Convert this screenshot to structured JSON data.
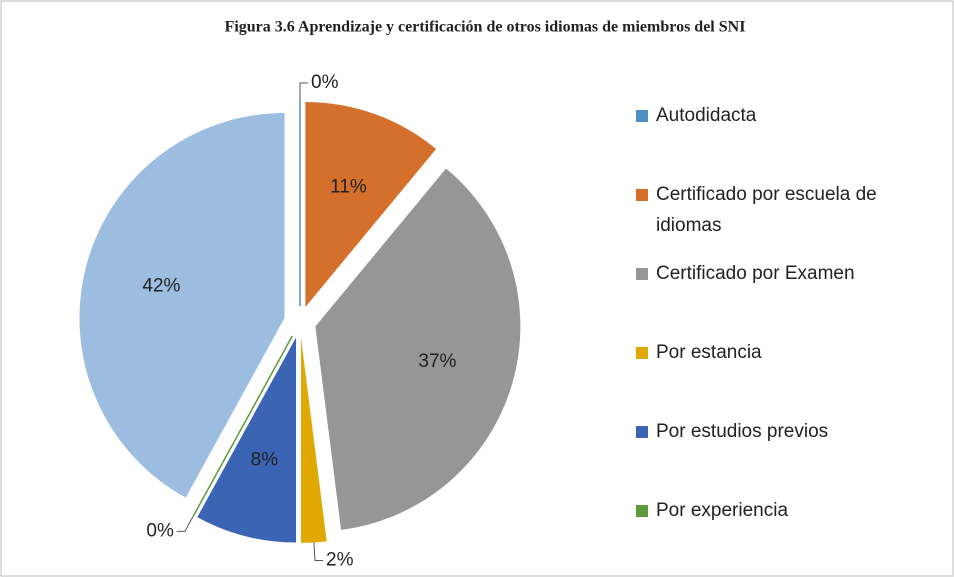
{
  "chart_data": {
    "type": "pie",
    "title": "Figura 3.6 Aprendizaje y certificación de otros idiomas de miembros del SNI",
    "categories": [
      "Autodidacta",
      "Certificado por escuela de idiomas",
      "Certificado por Examen",
      "Por estancia",
      "Por estudios previos",
      "Por experiencia",
      null
    ],
    "values": [
      0,
      11,
      37,
      2,
      8,
      0,
      42
    ],
    "value_labels": [
      "0%",
      "11%",
      "37%",
      "2%",
      "8%",
      "0%",
      "42%"
    ],
    "colors": [
      "#4f8fc4",
      "#d4702b",
      "#969696",
      "#e0a800",
      "#3c64b4",
      "#5c9a3c",
      "#9cbce0"
    ],
    "legend": "right"
  }
}
